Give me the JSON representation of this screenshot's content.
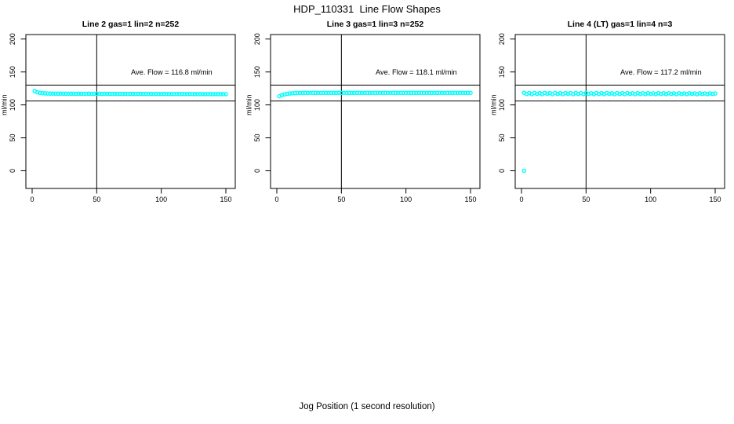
{
  "page": {
    "title": "HDP_110331  Line Flow Shapes",
    "xlabel": "Jog Position (1 second resolution)"
  },
  "style": {
    "point_color": "#00ffff",
    "line_color": "#000000",
    "background": "#ffffff"
  },
  "chart_data": [
    {
      "type": "scatter",
      "title": "Line 2 gas=1 lin=2 n=252",
      "annotation": "Ave. Flow =  116.8  ml/min",
      "ave_flow": 116.8,
      "n": 252,
      "ylabel": "ml/min",
      "x_ticks": [
        0,
        50,
        100,
        150
      ],
      "y_ticks": [
        0,
        50,
        100,
        150,
        200
      ],
      "xlim": [
        -5,
        157
      ],
      "ylim": [
        -27,
        207
      ],
      "vline": 50,
      "hlines": [
        130,
        106
      ],
      "x_start": 2,
      "x_step": 2,
      "y": [
        121.0,
        119.2,
        118.3,
        117.8,
        117.5,
        117.3,
        117.2,
        117.1,
        117.1,
        117.0,
        117.1,
        116.9,
        117.0,
        116.9,
        117.0,
        116.9,
        116.8,
        117.0,
        116.9,
        116.8,
        116.9,
        117.0,
        116.8,
        116.9,
        116.8,
        116.9,
        116.7,
        116.9,
        116.8,
        116.7,
        116.8,
        116.9,
        116.7,
        116.8,
        116.7,
        116.8,
        116.6,
        116.8,
        116.7,
        116.6,
        116.8,
        116.7,
        116.6,
        116.7,
        116.6,
        116.7,
        116.5,
        116.7,
        116.6,
        116.5,
        116.7,
        116.6,
        116.5,
        116.6,
        116.5,
        116.6,
        116.4,
        116.6,
        116.5,
        116.4,
        116.6,
        116.5,
        116.4,
        116.5,
        116.4,
        116.5,
        116.3,
        116.5,
        116.4,
        116.3,
        116.5,
        116.4,
        116.3,
        116.4,
        116.3
      ],
      "outliers": []
    },
    {
      "type": "scatter",
      "title": "Line 3 gas=1 lin=3 n=252",
      "annotation": "Ave. Flow =  118.1  ml/min",
      "ave_flow": 118.1,
      "n": 252,
      "ylabel": "ml/min",
      "x_ticks": [
        0,
        50,
        100,
        150
      ],
      "y_ticks": [
        0,
        50,
        100,
        150,
        200
      ],
      "xlim": [
        -5,
        157
      ],
      "ylim": [
        -27,
        207
      ],
      "vline": 50,
      "hlines": [
        130,
        106
      ],
      "x_start": 2,
      "x_step": 2,
      "y": [
        113.2,
        114.9,
        116.0,
        116.8,
        117.3,
        117.7,
        117.9,
        118.0,
        118.1,
        118.1,
        118.2,
        118.1,
        118.2,
        118.3,
        118.1,
        118.2,
        118.1,
        118.3,
        118.2,
        118.1,
        118.2,
        118.3,
        118.1,
        118.2,
        118.1,
        118.2,
        118.3,
        118.1,
        118.2,
        118.1,
        118.3,
        118.2,
        118.1,
        118.2,
        118.3,
        118.1,
        118.2,
        118.1,
        118.3,
        118.2,
        118.1,
        118.2,
        118.3,
        118.1,
        118.2,
        118.1,
        118.3,
        118.2,
        118.1,
        118.2,
        118.3,
        118.1,
        118.2,
        118.1,
        118.3,
        118.2,
        118.1,
        118.2,
        118.3,
        118.1,
        118.2,
        118.1,
        118.3,
        118.2,
        118.1,
        118.2,
        118.3,
        118.1,
        118.2,
        118.1,
        118.3,
        118.2,
        118.1,
        118.2,
        118.2
      ],
      "outliers": []
    },
    {
      "type": "scatter",
      "title": "Line 4 (LT) gas=1 lin=4 n=3",
      "annotation": "Ave. Flow =  117.2  ml/min",
      "ave_flow": 117.2,
      "n": 3,
      "ylabel": "ml/min",
      "x_ticks": [
        0,
        50,
        100,
        150
      ],
      "y_ticks": [
        0,
        50,
        100,
        150,
        200
      ],
      "xlim": [
        -5,
        157
      ],
      "ylim": [
        -27,
        207
      ],
      "vline": 50,
      "hlines": [
        130,
        106
      ],
      "x_start": 2,
      "x_step": 2,
      "y": [
        118.4,
        116.5,
        117.9,
        116.3,
        118.2,
        116.8,
        117.8,
        116.4,
        118.1,
        117.0,
        117.9,
        116.3,
        118.2,
        116.7,
        117.7,
        116.4,
        118.0,
        116.9,
        117.8,
        116.3,
        118.1,
        116.6,
        117.9,
        116.4,
        118.0,
        116.8,
        117.7,
        116.3,
        118.1,
        116.6,
        117.8,
        116.4,
        118.0,
        116.9,
        117.6,
        116.3,
        118.0,
        116.6,
        117.8,
        116.4,
        117.9,
        116.8,
        117.6,
        116.3,
        117.9,
        116.6,
        117.7,
        116.4,
        117.8,
        116.8,
        117.5,
        116.3,
        117.8,
        116.6,
        117.6,
        116.4,
        117.7,
        116.8,
        117.5,
        116.3,
        117.7,
        116.6,
        117.5,
        116.4,
        117.6,
        116.8,
        117.4,
        116.3,
        117.6,
        116.6,
        117.4,
        116.4,
        117.5,
        116.7,
        117.3
      ],
      "outliers": [
        [
          2,
          0
        ]
      ]
    }
  ]
}
